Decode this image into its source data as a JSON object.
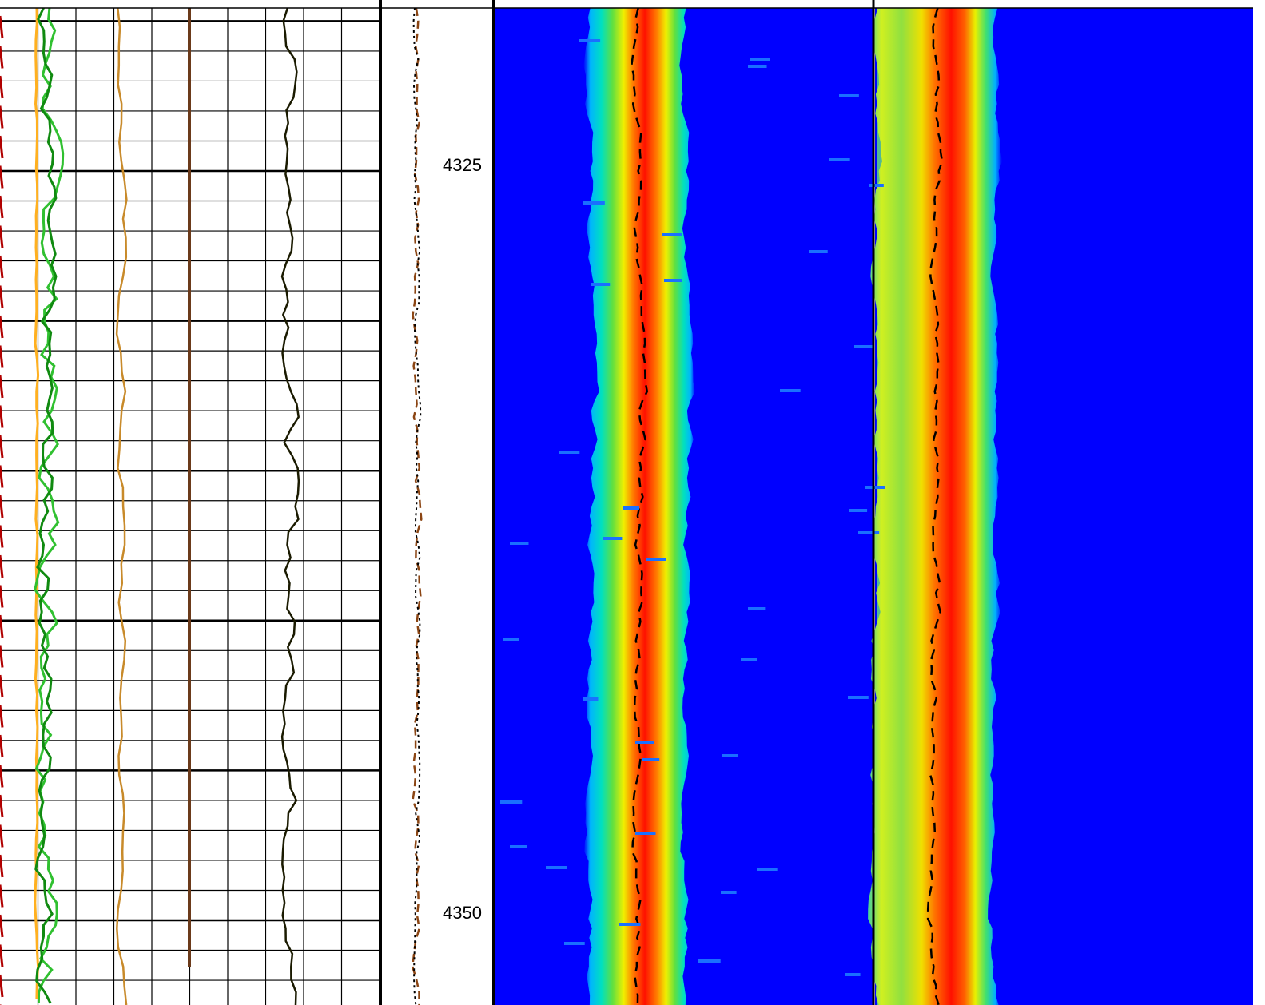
{
  "depth_track": {
    "labels": [
      "4325",
      "4350"
    ]
  }
}
